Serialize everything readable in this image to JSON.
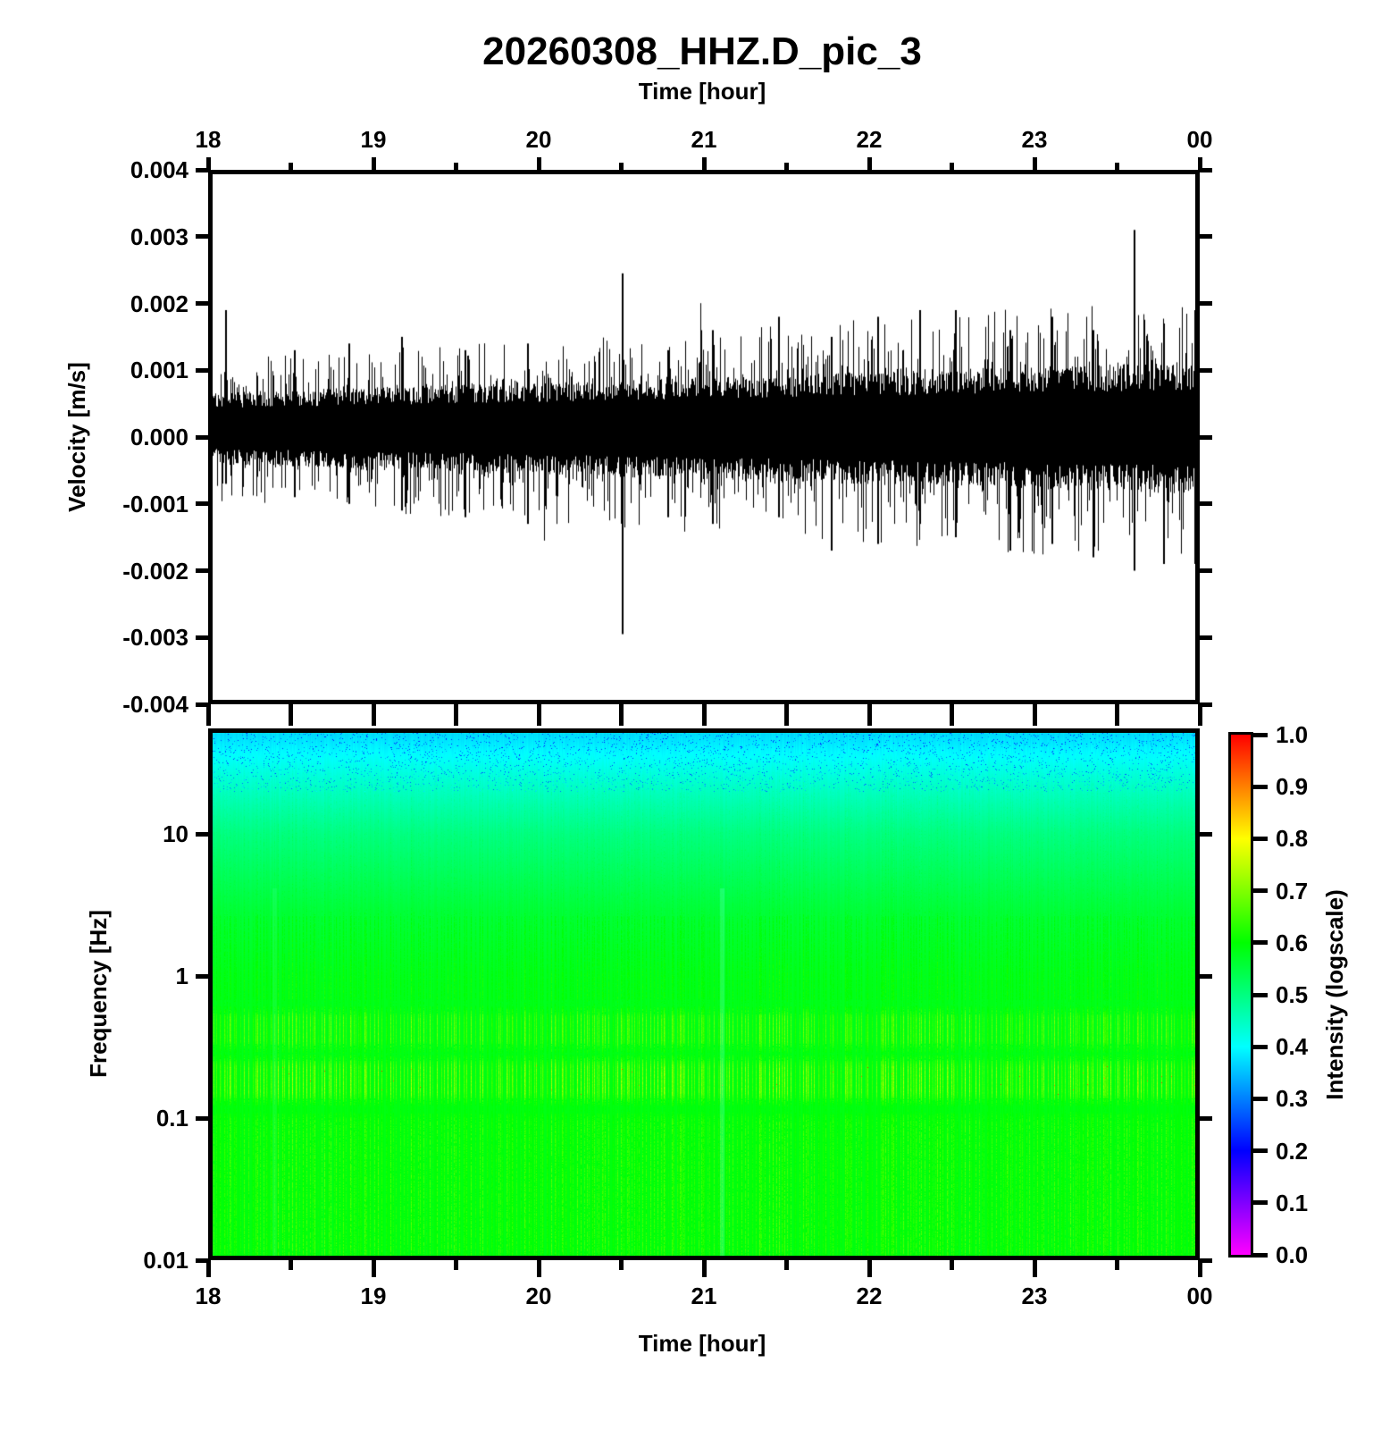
{
  "title": "20260308_HHZ.D_pic_3",
  "top_axis": {
    "label": "Time [hour]",
    "tick_labels": [
      "18",
      "19",
      "20",
      "21",
      "22",
      "23",
      "00"
    ]
  },
  "bottom_axis": {
    "label": "Time [hour]",
    "tick_labels": [
      "18",
      "19",
      "20",
      "21",
      "22",
      "23",
      "00"
    ]
  },
  "waveform": {
    "ylabel": "Velocity [m/s]",
    "ytick_labels": [
      "0.004",
      "0.003",
      "0.002",
      "0.001",
      "0.000",
      "-0.001",
      "-0.002",
      "-0.003",
      "-0.004"
    ]
  },
  "spectrogram": {
    "ylabel": "Frequency [Hz]",
    "ytick_labels": [
      "10",
      "1",
      "0.1",
      "0.01"
    ]
  },
  "colorbar": {
    "label": "Intensity (logscale)",
    "tick_labels": [
      "1.0",
      "0.9",
      "0.8",
      "0.7",
      "0.6",
      "0.5",
      "0.4",
      "0.3",
      "0.2",
      "0.1",
      "0.0"
    ],
    "gradient_stops": [
      "#ff00ff",
      "#8000ff",
      "#0000ff",
      "#0080ff",
      "#00ffff",
      "#00ff80",
      "#00ff00",
      "#80ff00",
      "#ffff00",
      "#ff8000",
      "#ff0000"
    ]
  },
  "chart_data": [
    {
      "type": "line",
      "name": "seismogram-waveform",
      "title": "20260308_HHZ.D_pic_3",
      "xlabel": "Time [hour]",
      "ylabel": "Velocity [m/s]",
      "x_range": [
        18,
        24
      ],
      "x_tick_labels": [
        "18",
        "19",
        "20",
        "21",
        "22",
        "23",
        "00"
      ],
      "x_major_tick": 1,
      "x_minor_tick": 0.5,
      "y_range": [
        -0.004,
        0.004
      ],
      "y_major_tick": 0.001,
      "line_color": "#000000",
      "noise_envelope": {
        "half_width_start": 0.00042,
        "half_width_end": 0.00078,
        "center_offset": 0.00012
      },
      "notable_spikes": [
        {
          "t": 18.1,
          "up": 0.0019,
          "down": -0.0007
        },
        {
          "t": 18.52,
          "up": 0.0013,
          "down": -0.0009
        },
        {
          "t": 18.85,
          "up": 0.0014,
          "down": -0.001
        },
        {
          "t": 19.17,
          "up": 0.0015,
          "down": -0.0011
        },
        {
          "t": 19.55,
          "up": 0.0013,
          "down": -0.0012
        },
        {
          "t": 19.93,
          "up": 0.0014,
          "down": -0.0013
        },
        {
          "t": 20.5,
          "up": 0.00245,
          "down": -0.00295
        },
        {
          "t": 20.78,
          "up": 0.0013,
          "down": -0.0012
        },
        {
          "t": 21.05,
          "up": 0.0016,
          "down": -0.0013
        },
        {
          "t": 21.45,
          "up": 0.0018,
          "down": -0.0012
        },
        {
          "t": 21.77,
          "up": 0.0015,
          "down": -0.0017
        },
        {
          "t": 22.05,
          "up": 0.0018,
          "down": -0.0016
        },
        {
          "t": 22.3,
          "up": 0.0019,
          "down": -0.0013
        },
        {
          "t": 22.52,
          "up": 0.0019,
          "down": -0.0015
        },
        {
          "t": 22.85,
          "up": 0.0016,
          "down": -0.0017
        },
        {
          "t": 23.1,
          "up": 0.0018,
          "down": -0.0016
        },
        {
          "t": 23.35,
          "up": 0.0016,
          "down": -0.0018
        },
        {
          "t": 23.6,
          "up": 0.0031,
          "down": -0.002
        },
        {
          "t": 23.78,
          "up": 0.0017,
          "down": -0.0019
        },
        {
          "t": 23.97,
          "up": 0.0019,
          "down": -0.0019
        }
      ]
    },
    {
      "type": "heatmap",
      "name": "spectrogram",
      "xlabel": "Time [hour]",
      "ylabel": "Frequency [Hz]",
      "x_range": [
        18,
        24
      ],
      "y_scale": "log",
      "y_range": [
        0.01,
        55
      ],
      "y_tick_values": [
        10,
        1,
        0.1,
        0.01
      ],
      "intensity_label": "Intensity (logscale)",
      "intensity_range": [
        0.0,
        1.0
      ],
      "colormap": "rainbow magenta-blue-cyan-green-yellow-red",
      "background_intensity_by_freq": [
        {
          "freq": 55,
          "intensity": 0.365
        },
        {
          "freq": 20,
          "intensity": 0.45
        },
        {
          "freq": 10,
          "intensity": 0.5
        },
        {
          "freq": 3,
          "intensity": 0.555
        },
        {
          "freq": 1,
          "intensity": 0.578
        },
        {
          "freq": 0.1,
          "intensity": 0.59
        },
        {
          "freq": 0.01,
          "intensity": 0.59
        }
      ],
      "stripe_bands": [
        {
          "freq_lo": 0.3,
          "freq_hi": 0.6,
          "strength": 1.0
        },
        {
          "freq_lo": 0.13,
          "freq_hi": 0.27,
          "strength": 1.25
        },
        {
          "freq_lo": 0.01,
          "freq_hi": 0.11,
          "strength": 0.65
        },
        {
          "freq_lo": 0.6,
          "freq_hi": 3.0,
          "strength": 0.35
        },
        {
          "freq_lo": 3.0,
          "freq_hi": 28.0,
          "strength": 0.18
        }
      ],
      "light_columns": [
        {
          "hour": 21.11,
          "whiten": 0.32
        },
        {
          "hour": 18.4,
          "whiten": 0.15
        }
      ]
    }
  ]
}
